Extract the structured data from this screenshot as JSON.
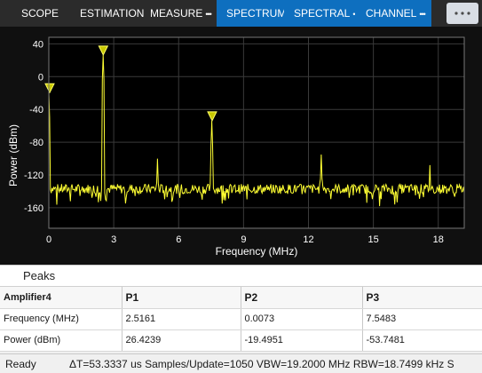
{
  "tabs": [
    {
      "label": "SCOPE",
      "more": false,
      "active": false
    },
    {
      "label": "ESTIMATION",
      "more": false,
      "active": false
    },
    {
      "label": "MEASURE",
      "more": true,
      "active": false
    },
    {
      "label": "SPECTRUM",
      "more": false,
      "active": true
    },
    {
      "label": "SPECTRAL",
      "more": true,
      "active": true
    },
    {
      "label": "CHANNEL",
      "more": true,
      "active": true
    }
  ],
  "chart_data": {
    "type": "line",
    "xlabel": "Frequency (MHz)",
    "ylabel": "Power (dBm)",
    "xlim": [
      0,
      19.2
    ],
    "ylim": [
      -185,
      48
    ],
    "xticks": [
      0,
      3,
      6,
      9,
      12,
      15,
      18
    ],
    "yticks": [
      40,
      0,
      -40,
      -80,
      -120,
      -160
    ],
    "grid": true,
    "line_color": "#ffff33",
    "noise_floor_dbm": -137,
    "spikes": [
      {
        "x": 0.0073,
        "y": -19.4951
      },
      {
        "x": 2.5161,
        "y": 26.4239
      },
      {
        "x": 5.03,
        "y": -100
      },
      {
        "x": 7.5483,
        "y": -53.7481
      },
      {
        "x": 12.58,
        "y": -95
      },
      {
        "x": 17.61,
        "y": -108
      }
    ],
    "peak_markers": [
      {
        "label": "P1",
        "x": 2.5161,
        "y": 26.4239
      },
      {
        "label": "P2",
        "x": 0.0073,
        "y": -19.4951
      },
      {
        "label": "P3",
        "x": 7.5483,
        "y": -53.7481
      }
    ]
  },
  "peaks": {
    "title": "Peaks",
    "header": [
      "Amplifier4",
      "P1",
      "P2",
      "P3"
    ],
    "rows": [
      [
        "Frequency (MHz)",
        "2.5161",
        "0.0073",
        "7.5483"
      ],
      [
        "Power (dBm)",
        "26.4239",
        "-19.4951",
        "-53.7481"
      ]
    ]
  },
  "status": {
    "ready": "Ready",
    "info": "ΔT=53.3337 us  Samples/Update=1050  VBW=19.2000 MHz  RBW=18.7499 kHz  S"
  }
}
